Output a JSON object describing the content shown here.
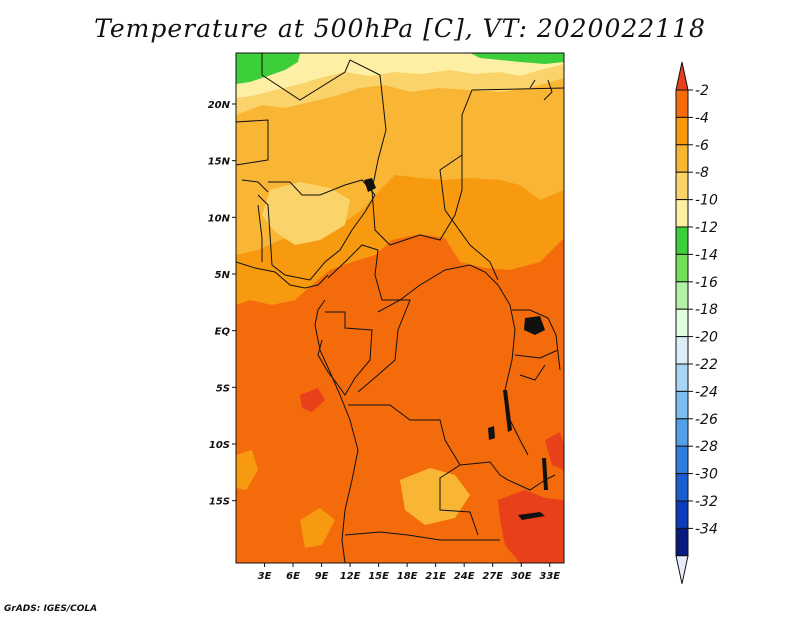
{
  "title": "Temperature at 500hPa [C], VT: 2020022118",
  "credit": "GrADS: IGES/COLA",
  "map": {
    "variable": "Temperature",
    "level": "500hPa",
    "units": "C",
    "valid_time": "2020022118",
    "lon_range": [
      0,
      34.5
    ],
    "lat_range": [
      -20.5,
      24.5
    ],
    "lat_ticks": [
      {
        "value": 20,
        "label": "20N"
      },
      {
        "value": 15,
        "label": "15N"
      },
      {
        "value": 10,
        "label": "10N"
      },
      {
        "value": 5,
        "label": "5N"
      },
      {
        "value": 0,
        "label": "EQ"
      },
      {
        "value": -5,
        "label": "5S"
      },
      {
        "value": -10,
        "label": "10S"
      },
      {
        "value": -15,
        "label": "15S"
      }
    ],
    "lon_ticks": [
      {
        "value": 3,
        "label": "3E"
      },
      {
        "value": 6,
        "label": "6E"
      },
      {
        "value": 9,
        "label": "9E"
      },
      {
        "value": 12,
        "label": "12E"
      },
      {
        "value": 15,
        "label": "15E"
      },
      {
        "value": 18,
        "label": "18E"
      },
      {
        "value": 21,
        "label": "21E"
      },
      {
        "value": 24,
        "label": "24E"
      },
      {
        "value": 27,
        "label": "27E"
      },
      {
        "value": 30,
        "label": "30E"
      },
      {
        "value": 33,
        "label": "33E"
      }
    ]
  },
  "colorbar": {
    "top_arrow_color": "#e8401a",
    "bottom_arrow_color": "#e6ecf8",
    "bins": [
      {
        "color": "#f46b0c"
      },
      {
        "color": "#f79a10"
      },
      {
        "color": "#f9b534"
      },
      {
        "color": "#fbd36b"
      },
      {
        "color": "#fdf0a4"
      },
      {
        "color": "#3ccf3a"
      },
      {
        "color": "#73e05c"
      },
      {
        "color": "#b4f0a6"
      },
      {
        "color": "#e2fcdf"
      },
      {
        "color": "#ddeef9"
      },
      {
        "color": "#a9d5f5"
      },
      {
        "color": "#7ebdef"
      },
      {
        "color": "#539fe8"
      },
      {
        "color": "#2f7ddc"
      },
      {
        "color": "#1a5ed0"
      },
      {
        "color": "#0d3cb8"
      },
      {
        "color": "#0a1a7c"
      }
    ],
    "labels": [
      "-2",
      "-4",
      "-6",
      "-8",
      "-10",
      "-12",
      "-14",
      "-16",
      "-18",
      "-20",
      "-22",
      "-24",
      "-26",
      "-28",
      "-30",
      "-32",
      "-34"
    ]
  }
}
